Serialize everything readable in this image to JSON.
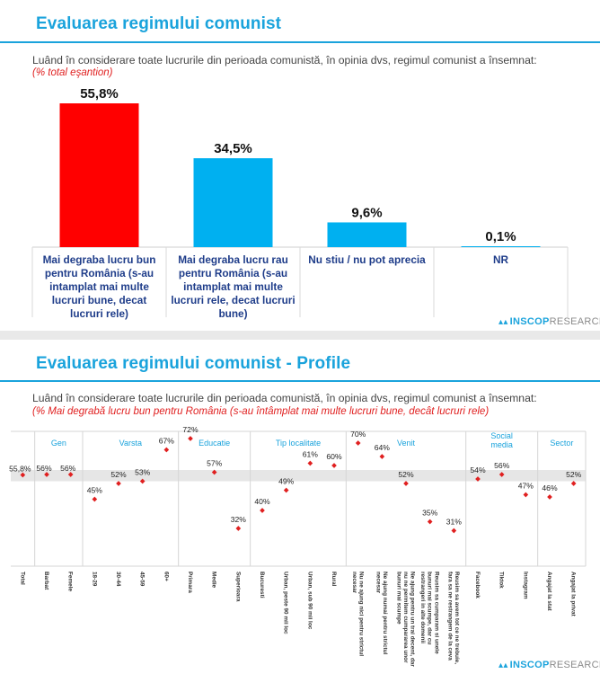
{
  "slide1": {
    "title": "Evaluarea regimului comunist",
    "question": "Luând în considerare toate lucrurile din perioada comunistă, în opinia dvs, regimul comunist a însemnat:",
    "base": "(% total eşantion)",
    "logo_brand": "INSCOP",
    "logo_suffix": "RESEARCH"
  },
  "slide2": {
    "title": "Evaluarea regimului comunist - Profile",
    "question": "Luând în considerare toate lucrurile din perioada comunistă, în opinia dvs, regimul comunist a însemnat:",
    "base": "(% Mai degrabă lucru bun pentru România (s-au întâmplat mai multe lucruri bune, decât lucruri rele)",
    "logo_brand": "INSCOP",
    "logo_suffix": "RESEARCH"
  },
  "chart_data": [
    {
      "type": "bar",
      "title": "Evaluarea regimului comunist",
      "categories": [
        [
          "Mai degraba lucru bun",
          "pentru România (s-au",
          "intamplat mai multe",
          "lucruri bune, decat",
          "lucruri rele)"
        ],
        [
          "Mai degraba lucru rau",
          "pentru România (s-au",
          "intamplat mai multe",
          "lucruri rele, decat lucruri",
          "bune)"
        ],
        [
          "Nu stiu / nu pot aprecia"
        ],
        [
          "NR"
        ]
      ],
      "values": [
        55.8,
        34.5,
        9.6,
        0.1
      ],
      "value_labels": [
        "55,8%",
        "34,5%",
        "9,6%",
        "0,1%"
      ],
      "colors": [
        "#ff0000",
        "#00b0f0",
        "#00b0f0",
        "#00b0f0"
      ],
      "ylim": [
        0,
        60
      ]
    },
    {
      "type": "scatter",
      "title": "Evaluarea regimului comunist - Profile",
      "ylim": [
        20,
        80
      ],
      "band": [
        53,
        58
      ],
      "point_color": "#e02020",
      "groups": [
        {
          "label": [
            "Gen"
          ],
          "span": [
            1,
            2
          ]
        },
        {
          "label": [
            "Varsta"
          ],
          "span": [
            3,
            6
          ]
        },
        {
          "label": [
            "Educatie"
          ],
          "span": [
            7,
            9
          ]
        },
        {
          "label": [
            "Tip localitate"
          ],
          "span": [
            10,
            13
          ]
        },
        {
          "label": [
            "Venit"
          ],
          "span": [
            14,
            18
          ]
        },
        {
          "label": [
            "Social",
            "media"
          ],
          "span": [
            19,
            21
          ]
        },
        {
          "label": [
            "Sector"
          ],
          "span": [
            22,
            23
          ]
        }
      ],
      "points": [
        {
          "label": [
            "Total"
          ],
          "value": 55.8,
          "value_label": "55,8%"
        },
        {
          "label": [
            "Barbat"
          ],
          "value": 56,
          "value_label": "56%"
        },
        {
          "label": [
            "Femele"
          ],
          "value": 56,
          "value_label": "56%"
        },
        {
          "label": [
            "18-29"
          ],
          "value": 45,
          "value_label": "45%"
        },
        {
          "label": [
            "30-44"
          ],
          "value": 52,
          "value_label": "52%"
        },
        {
          "label": [
            "45-59"
          ],
          "value": 53,
          "value_label": "53%"
        },
        {
          "label": [
            "60+"
          ],
          "value": 67,
          "value_label": "67%"
        },
        {
          "label": [
            "Primara"
          ],
          "value": 72,
          "value_label": "72%"
        },
        {
          "label": [
            "Medie"
          ],
          "value": 57,
          "value_label": "57%"
        },
        {
          "label": [
            "Superioara"
          ],
          "value": 32,
          "value_label": "32%"
        },
        {
          "label": [
            "Bucuresti"
          ],
          "value": 40,
          "value_label": "40%"
        },
        {
          "label": [
            "Urban, peste 90 mii loc"
          ],
          "value": 49,
          "value_label": "49%"
        },
        {
          "label": [
            "Urban, sub 90 mii loc"
          ],
          "value": 61,
          "value_label": "61%"
        },
        {
          "label": [
            "Rural"
          ],
          "value": 60,
          "value_label": "60%"
        },
        {
          "label": [
            "Nu ne ajung nici pentru strictul",
            "necesar"
          ],
          "value": 70,
          "value_label": "70%"
        },
        {
          "label": [
            "Ne ajung numai pentru strictul",
            "necesar"
          ],
          "value": 64,
          "value_label": "64%"
        },
        {
          "label": [
            "Ne ajung pentru un trai decent, dar",
            "nu ne permitem cumpararea unor",
            "bunuri mai scumpe"
          ],
          "value": 52,
          "value_label": "52%"
        },
        {
          "label": [
            "Reusim sa cumparam si unele",
            "bunuri mai scumpe, dar cu",
            "restrangeri in alte domenii"
          ],
          "value": 35,
          "value_label": "35%"
        },
        {
          "label": [
            "Reusim sa avem tot ce ne trebuie,",
            "fara sa ne restrangem de la ceva"
          ],
          "value": 31,
          "value_label": "31%"
        },
        {
          "label": [
            "Facebook"
          ],
          "value": 54,
          "value_label": "54%"
        },
        {
          "label": [
            "Tiktok"
          ],
          "value": 56,
          "value_label": "56%"
        },
        {
          "label": [
            "Instagram"
          ],
          "value": 47,
          "value_label": "47%"
        },
        {
          "label": [
            "Angajat la stat"
          ],
          "value": 46,
          "value_label": "46%"
        },
        {
          "label": [
            "Angajat la privat"
          ],
          "value": 52,
          "value_label": "52%"
        }
      ]
    }
  ]
}
